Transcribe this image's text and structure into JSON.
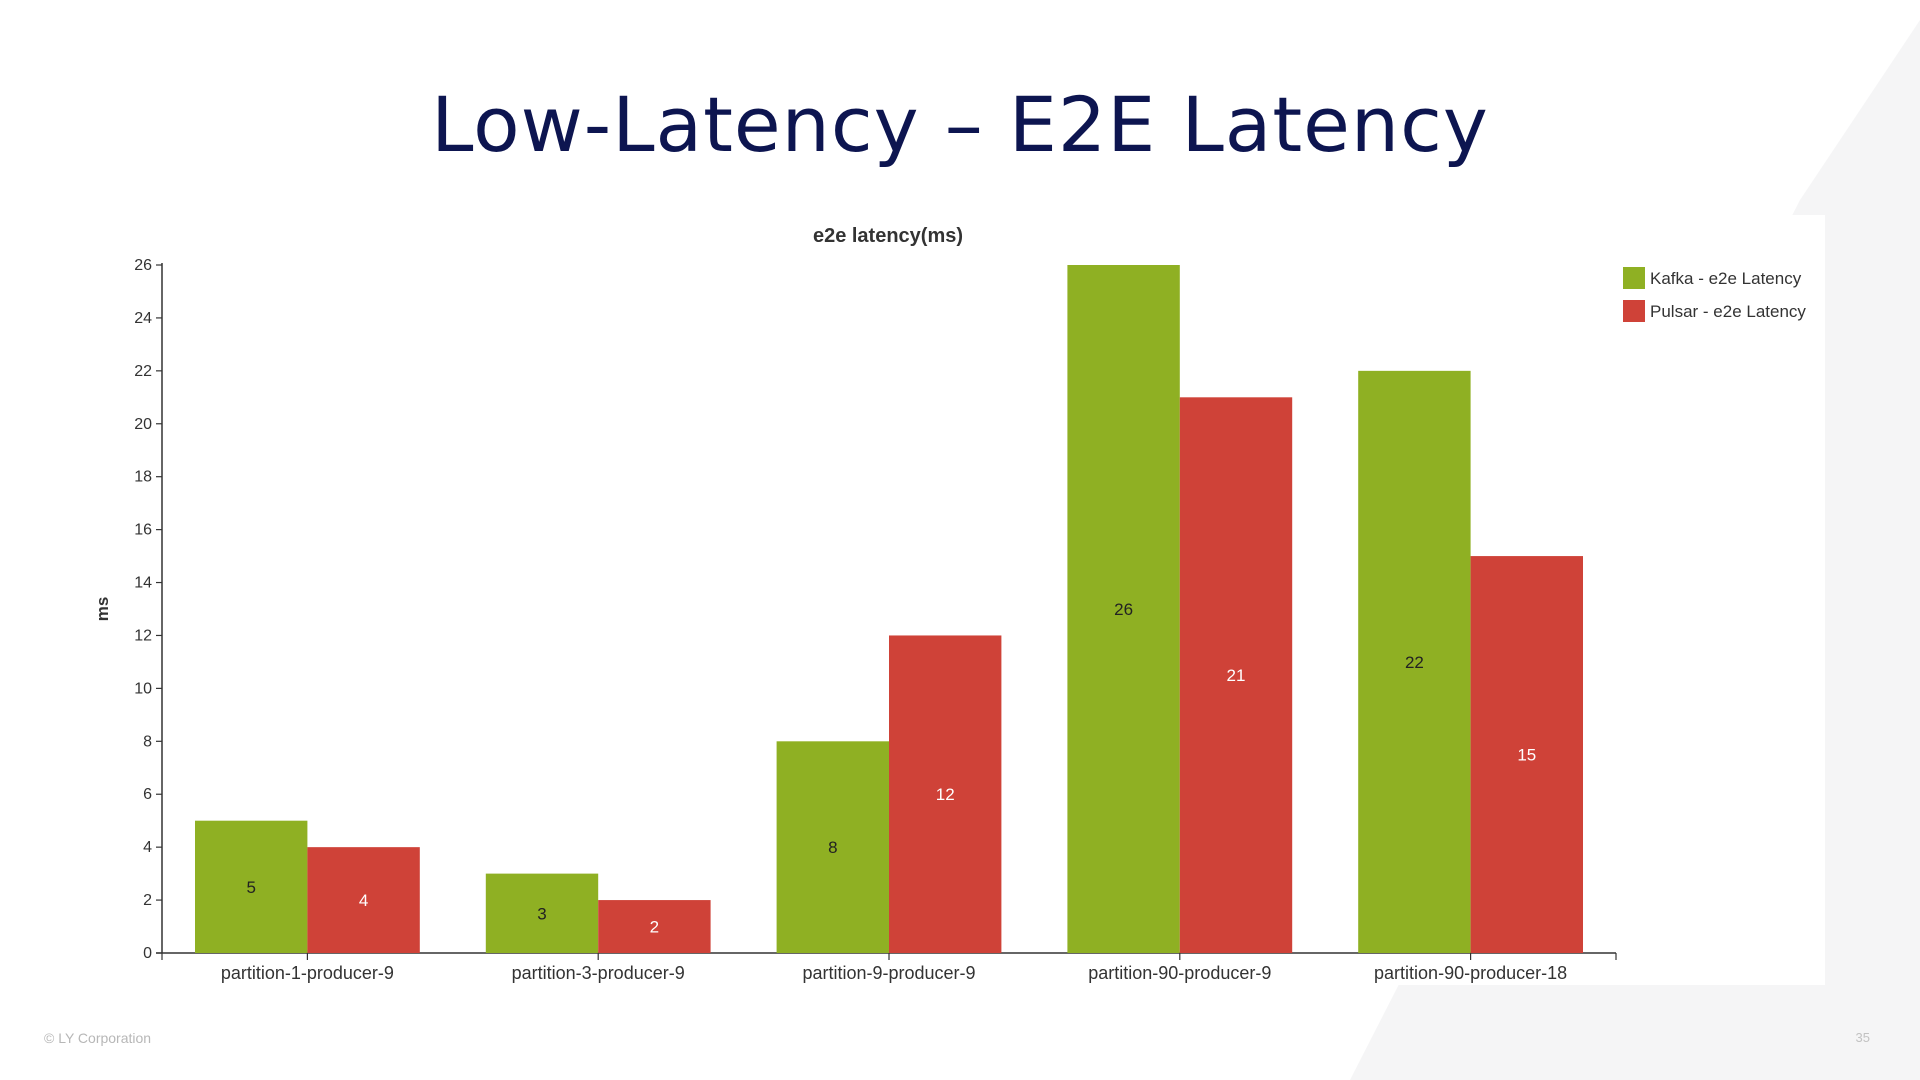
{
  "slide": {
    "title": "Low-Latency – E2E Latency",
    "copyright": "© LY Corporation",
    "page_number": "35"
  },
  "colors": {
    "title": "#0d1550",
    "kafka": "#8fb023",
    "pulsar": "#cf4238",
    "background_shape": "#f5f5f6"
  },
  "chart_data": {
    "type": "bar",
    "title": "e2e latency(ms)",
    "xlabel": "",
    "ylabel": "ms",
    "ylim": [
      0,
      26
    ],
    "yticks": [
      0,
      2,
      4,
      6,
      8,
      10,
      12,
      14,
      16,
      18,
      20,
      22,
      24,
      26
    ],
    "categories": [
      "partition-1-producer-9",
      "partition-3-producer-9",
      "partition-9-producer-9",
      "partition-90-producer-9",
      "partition-90-producer-18"
    ],
    "series": [
      {
        "name": "Kafka - e2e Latency",
        "color": "#8fb023",
        "values": [
          5,
          3,
          8,
          26,
          22
        ]
      },
      {
        "name": "Pulsar - e2e Latency",
        "color": "#cf4238",
        "values": [
          4,
          2,
          12,
          21,
          15
        ]
      }
    ],
    "grid": false,
    "legend": "top-right",
    "data_labels": true
  }
}
